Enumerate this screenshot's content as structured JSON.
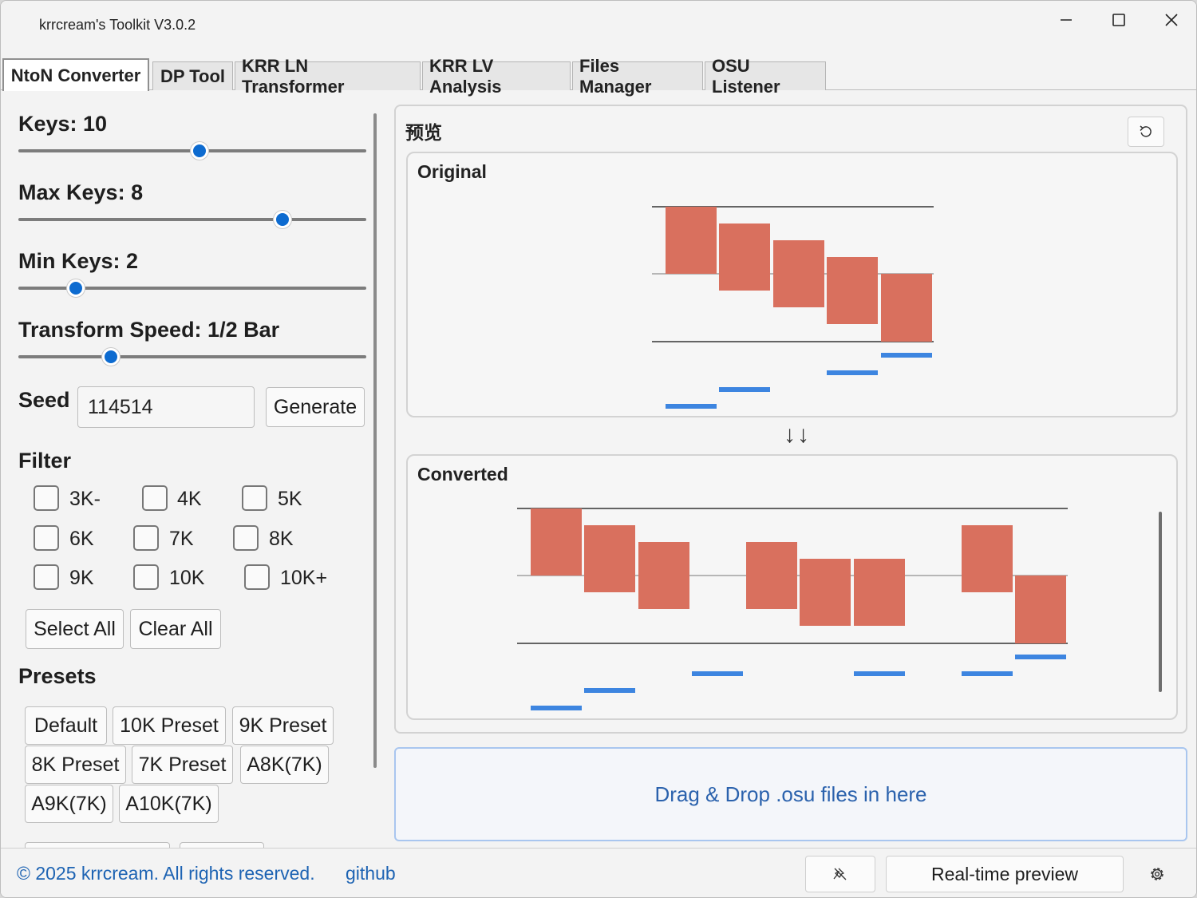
{
  "window": {
    "title": "krrcream's Toolkit V3.0.2"
  },
  "tabs": [
    {
      "label": "NtoN Converter",
      "active": true
    },
    {
      "label": "DP Tool"
    },
    {
      "label": "KRR LN Transformer"
    },
    {
      "label": "KRR LV Analysis"
    },
    {
      "label": "Files Manager"
    },
    {
      "label": "OSU Listener"
    }
  ],
  "settings": {
    "sliders": [
      {
        "label": "Keys: 10",
        "fraction": 0.52
      },
      {
        "label": "Max Keys: 8",
        "fraction": 0.76
      },
      {
        "label": "Min Keys: 2",
        "fraction": 0.165
      },
      {
        "label": "Transform Speed: 1/2 Bar",
        "fraction": 0.265
      }
    ],
    "seed": {
      "label": "Seed",
      "value": "114514",
      "generate_label": "Generate"
    },
    "filter": {
      "label": "Filter",
      "options": [
        "3K-",
        "4K",
        "5K",
        "6K",
        "7K",
        "8K",
        "9K",
        "10K",
        "10K+"
      ],
      "select_all": "Select All",
      "clear_all": "Clear All"
    },
    "presets": {
      "label": "Presets",
      "items": [
        "Default",
        "10K Preset",
        "9K Preset",
        "8K Preset",
        "7K Preset",
        "A8K(7K)",
        "A9K(7K)",
        "A10K(7K)"
      ]
    }
  },
  "preview": {
    "title": "预览",
    "original_label": "Original",
    "converted_label": "Converted",
    "arrow_text": "↓↓",
    "colors": {
      "note": "#d9705e",
      "marker": "#3d85e0",
      "line": "#333333"
    }
  },
  "drop_zone": {
    "text": "Drag & Drop .osu files in here"
  },
  "footer": {
    "copyright": "© 2025 krrcream. All rights reserved.",
    "github": "github",
    "realtime_label": "Real-time preview"
  }
}
